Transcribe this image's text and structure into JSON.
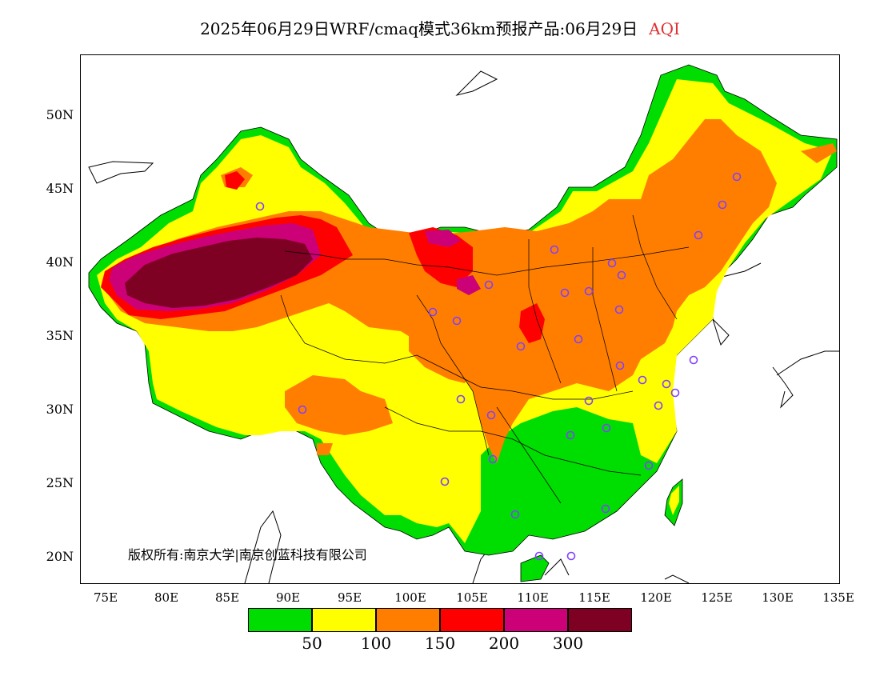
{
  "title": {
    "main": "2025年06月29日WRF/cmaq模式36km预报产品:06月29日",
    "variable": "AQI"
  },
  "axes": {
    "lat_labels": [
      "50N",
      "45N",
      "40N",
      "35N",
      "30N",
      "25N",
      "20N"
    ],
    "lon_labels": [
      "75E",
      "80E",
      "85E",
      "90E",
      "95E",
      "100E",
      "105E",
      "110E",
      "115E",
      "120E",
      "125E",
      "130E",
      "135E"
    ]
  },
  "copyright": "版权所有:南京大学|南京创蓝科技有限公司",
  "legend": {
    "colors": [
      "#00dd00",
      "#ffff00",
      "#ff7e00",
      "#ff0000",
      "#cc0077",
      "#7e0023"
    ],
    "labels": [
      "50",
      "100",
      "150",
      "200",
      "300"
    ]
  },
  "map": {
    "region": "China",
    "lon_range": [
      73,
      135
    ],
    "lat_range": [
      18,
      54
    ],
    "station_marker_color": "#8040ff",
    "station_count": 34
  }
}
